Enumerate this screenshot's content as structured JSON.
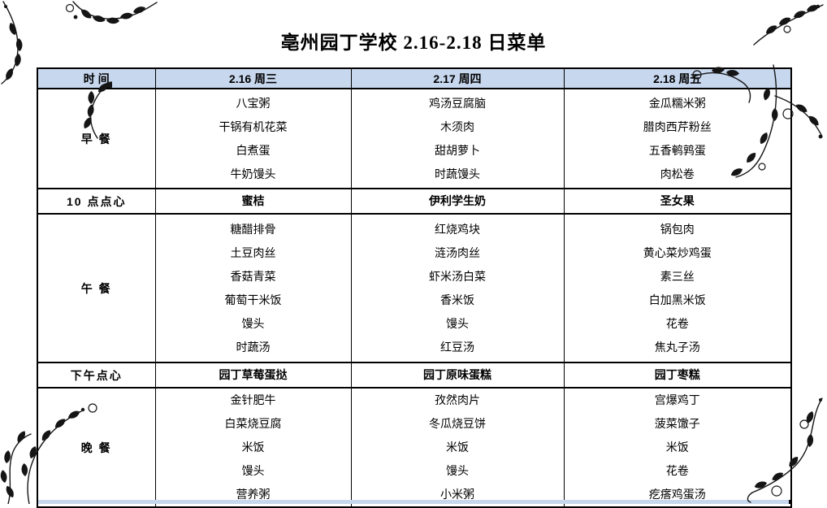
{
  "title": "亳州园丁学校 2.16-2.18 日菜单",
  "colors": {
    "header_bg": "#c7d7ee",
    "border": "#000000",
    "text": "#000000"
  },
  "table": {
    "header": [
      "时 间",
      "2.16 周三",
      "2.17 周四",
      "2.18 周五"
    ],
    "rows": [
      {
        "label": "早 餐",
        "kind": "meal",
        "cells": [
          [
            "八宝粥",
            "干锅有机花菜",
            "白煮蛋",
            "牛奶馒头"
          ],
          [
            "鸡汤豆腐脑",
            "木须肉",
            "甜胡萝卜",
            "时蔬馒头"
          ],
          [
            "金瓜糯米粥",
            "腊肉西芹粉丝",
            "五香鹌鹑蛋",
            "肉松卷"
          ]
        ]
      },
      {
        "label": "10 点点心",
        "kind": "snack",
        "cells": [
          [
            "蜜桔"
          ],
          [
            "伊利学生奶"
          ],
          [
            "圣女果"
          ]
        ]
      },
      {
        "label": "午 餐",
        "kind": "meal",
        "cells": [
          [
            "糖醋排骨",
            "土豆肉丝",
            "香菇青菜",
            "葡萄干米饭",
            "馒头",
            "时蔬汤"
          ],
          [
            "红烧鸡块",
            "涟汤肉丝",
            "虾米汤白菜",
            "香米饭",
            "馒头",
            "红豆汤"
          ],
          [
            "锅包肉",
            "黄心菜炒鸡蛋",
            "素三丝",
            "白加黑米饭",
            "花卷",
            "焦丸子汤"
          ]
        ]
      },
      {
        "label": "下午点心",
        "kind": "snack",
        "cells": [
          [
            "园丁草莓蛋挞"
          ],
          [
            "园丁原味蛋糕"
          ],
          [
            "园丁枣糕"
          ]
        ]
      },
      {
        "label": "晚 餐",
        "kind": "meal",
        "cells": [
          [
            "金针肥牛",
            "白菜烧豆腐",
            "米饭",
            "馒头",
            "营养粥"
          ],
          [
            "孜然肉片",
            "冬瓜烧豆饼",
            "米饭",
            "馒头",
            "小米粥"
          ],
          [
            "宫爆鸡丁",
            "菠菜馓子",
            "米饭",
            "花卷",
            "疙瘩鸡蛋汤"
          ]
        ]
      }
    ]
  }
}
